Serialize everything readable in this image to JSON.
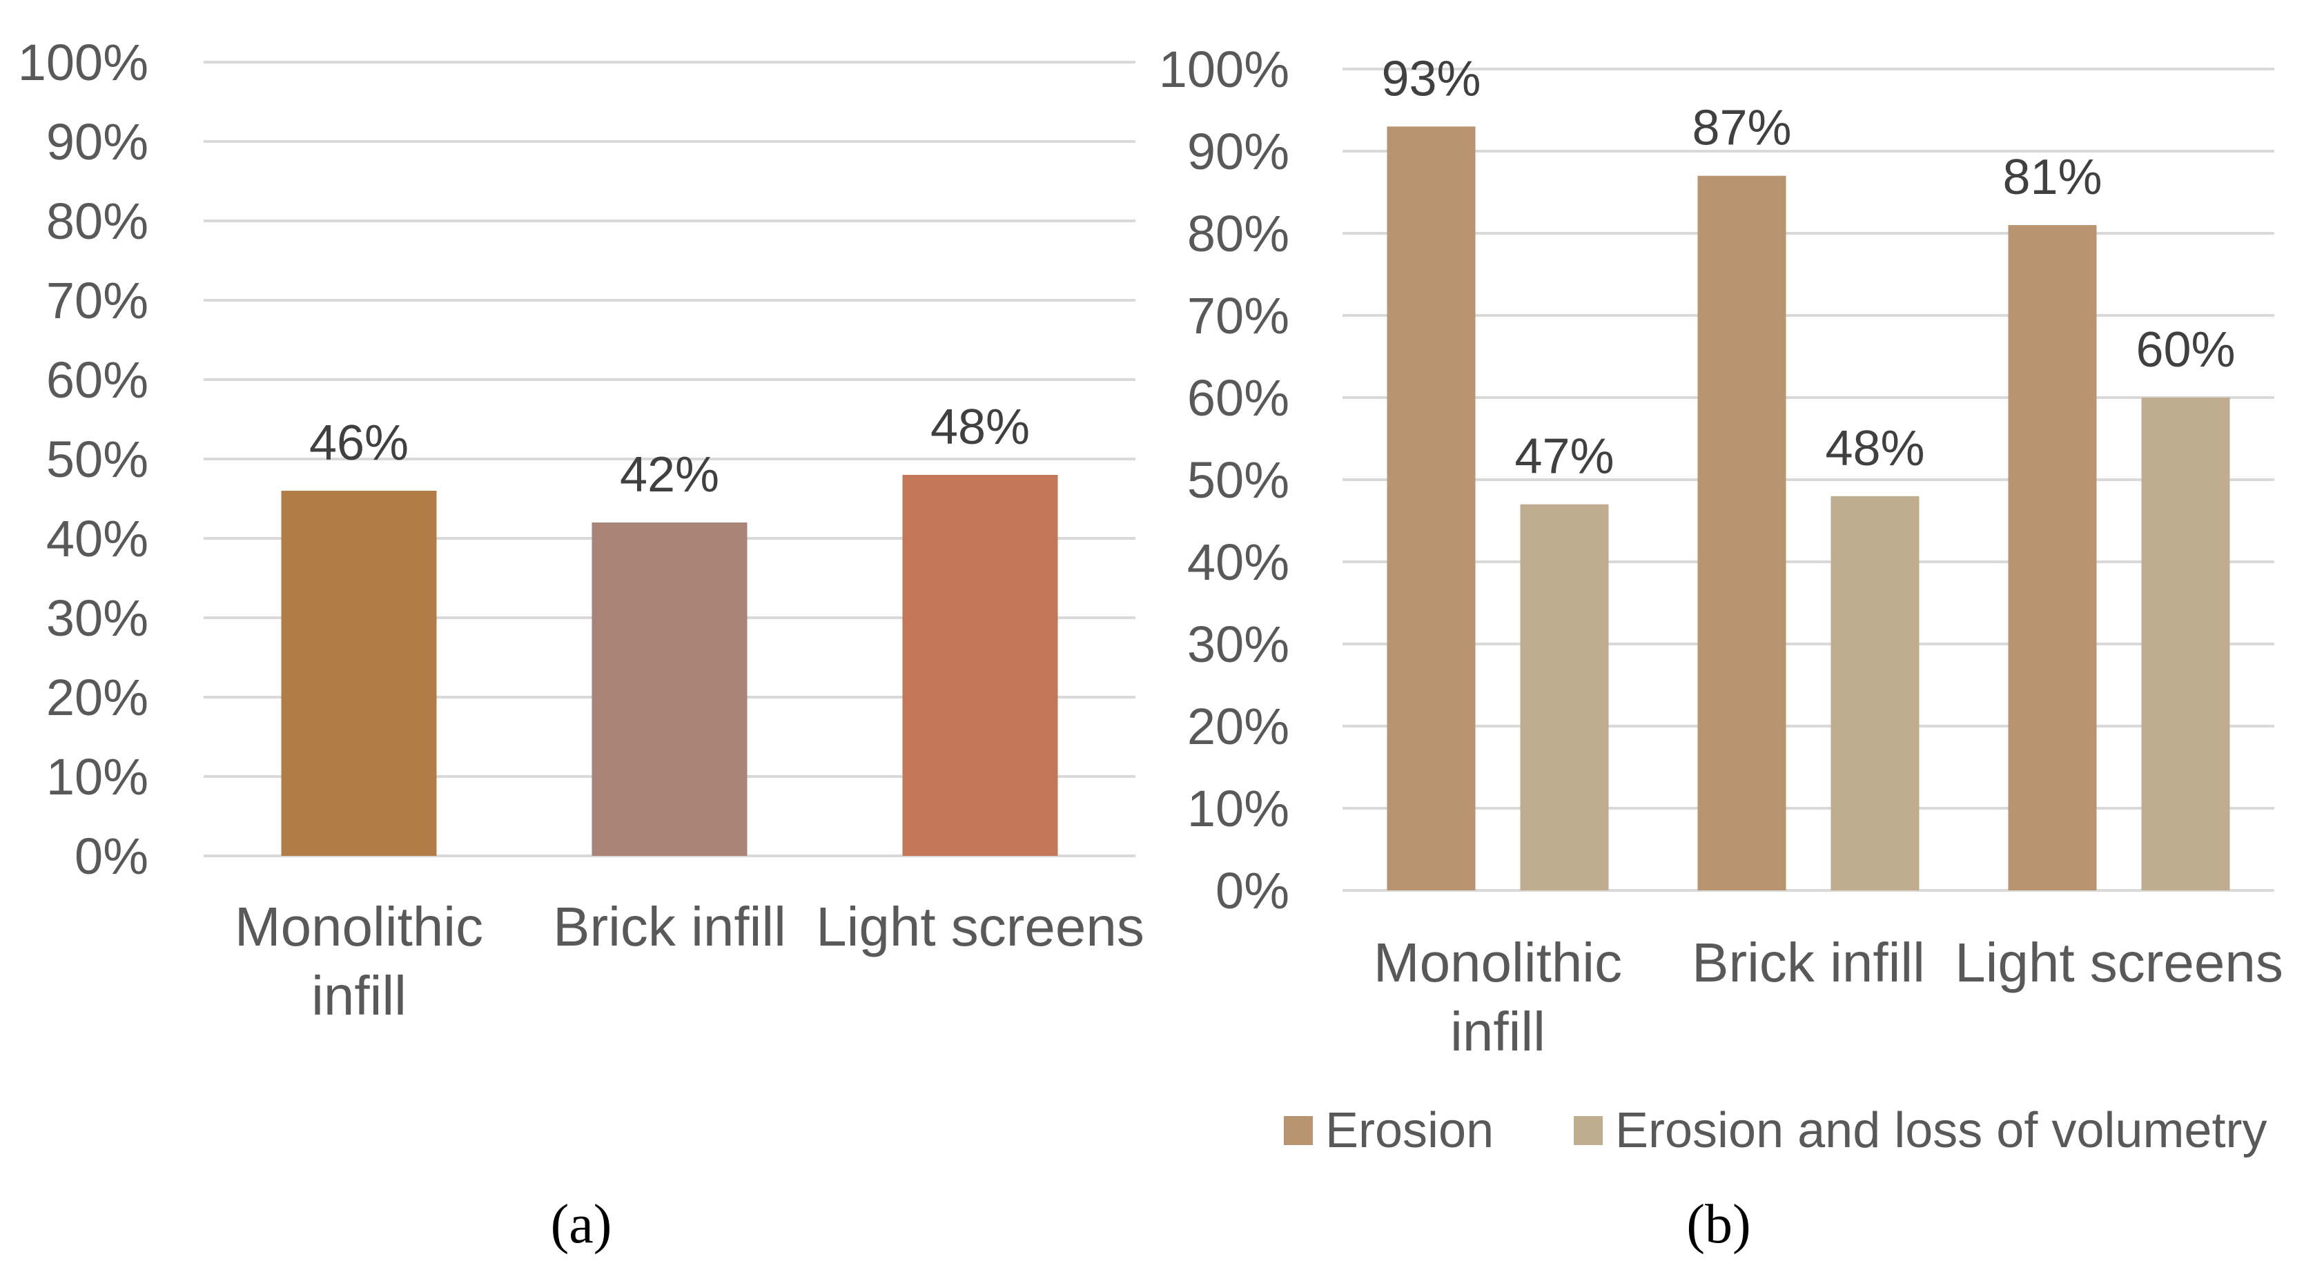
{
  "chart_data": [
    {
      "type": "bar",
      "panel_label": "(a)",
      "categories": [
        [
          "Monolithic",
          "infill"
        ],
        [
          "Brick infill"
        ],
        [
          "Light screens"
        ]
      ],
      "values": [
        46,
        42,
        48
      ],
      "data_labels": [
        "46%",
        "42%",
        "48%"
      ],
      "colors": [
        "#b27c48",
        "#a88476",
        "#c2775a"
      ],
      "y_ticks": [
        "0%",
        "10%",
        "20%",
        "30%",
        "40%",
        "50%",
        "60%",
        "70%",
        "80%",
        "90%",
        "100%"
      ],
      "ylim": [
        0,
        100
      ],
      "grid": true
    },
    {
      "type": "bar",
      "panel_label": "(b)",
      "categories": [
        [
          "Monolithic",
          "infill"
        ],
        [
          "Brick infill"
        ],
        [
          "Light screens"
        ]
      ],
      "series": [
        {
          "name": "Erosion",
          "values": [
            93,
            87,
            81
          ],
          "data_labels": [
            "93%",
            "87%",
            "81%"
          ],
          "color": "#b89470"
        },
        {
          "name": "Erosion and loss of volumetry",
          "values": [
            47,
            48,
            60
          ],
          "data_labels": [
            "47%",
            "48%",
            "60%"
          ],
          "color": "#c0ad90"
        }
      ],
      "y_ticks": [
        "0%",
        "10%",
        "20%",
        "30%",
        "40%",
        "50%",
        "60%",
        "70%",
        "80%",
        "90%",
        "100%"
      ],
      "ylim": [
        0,
        100
      ],
      "grid": true,
      "legend": "bottom"
    }
  ]
}
